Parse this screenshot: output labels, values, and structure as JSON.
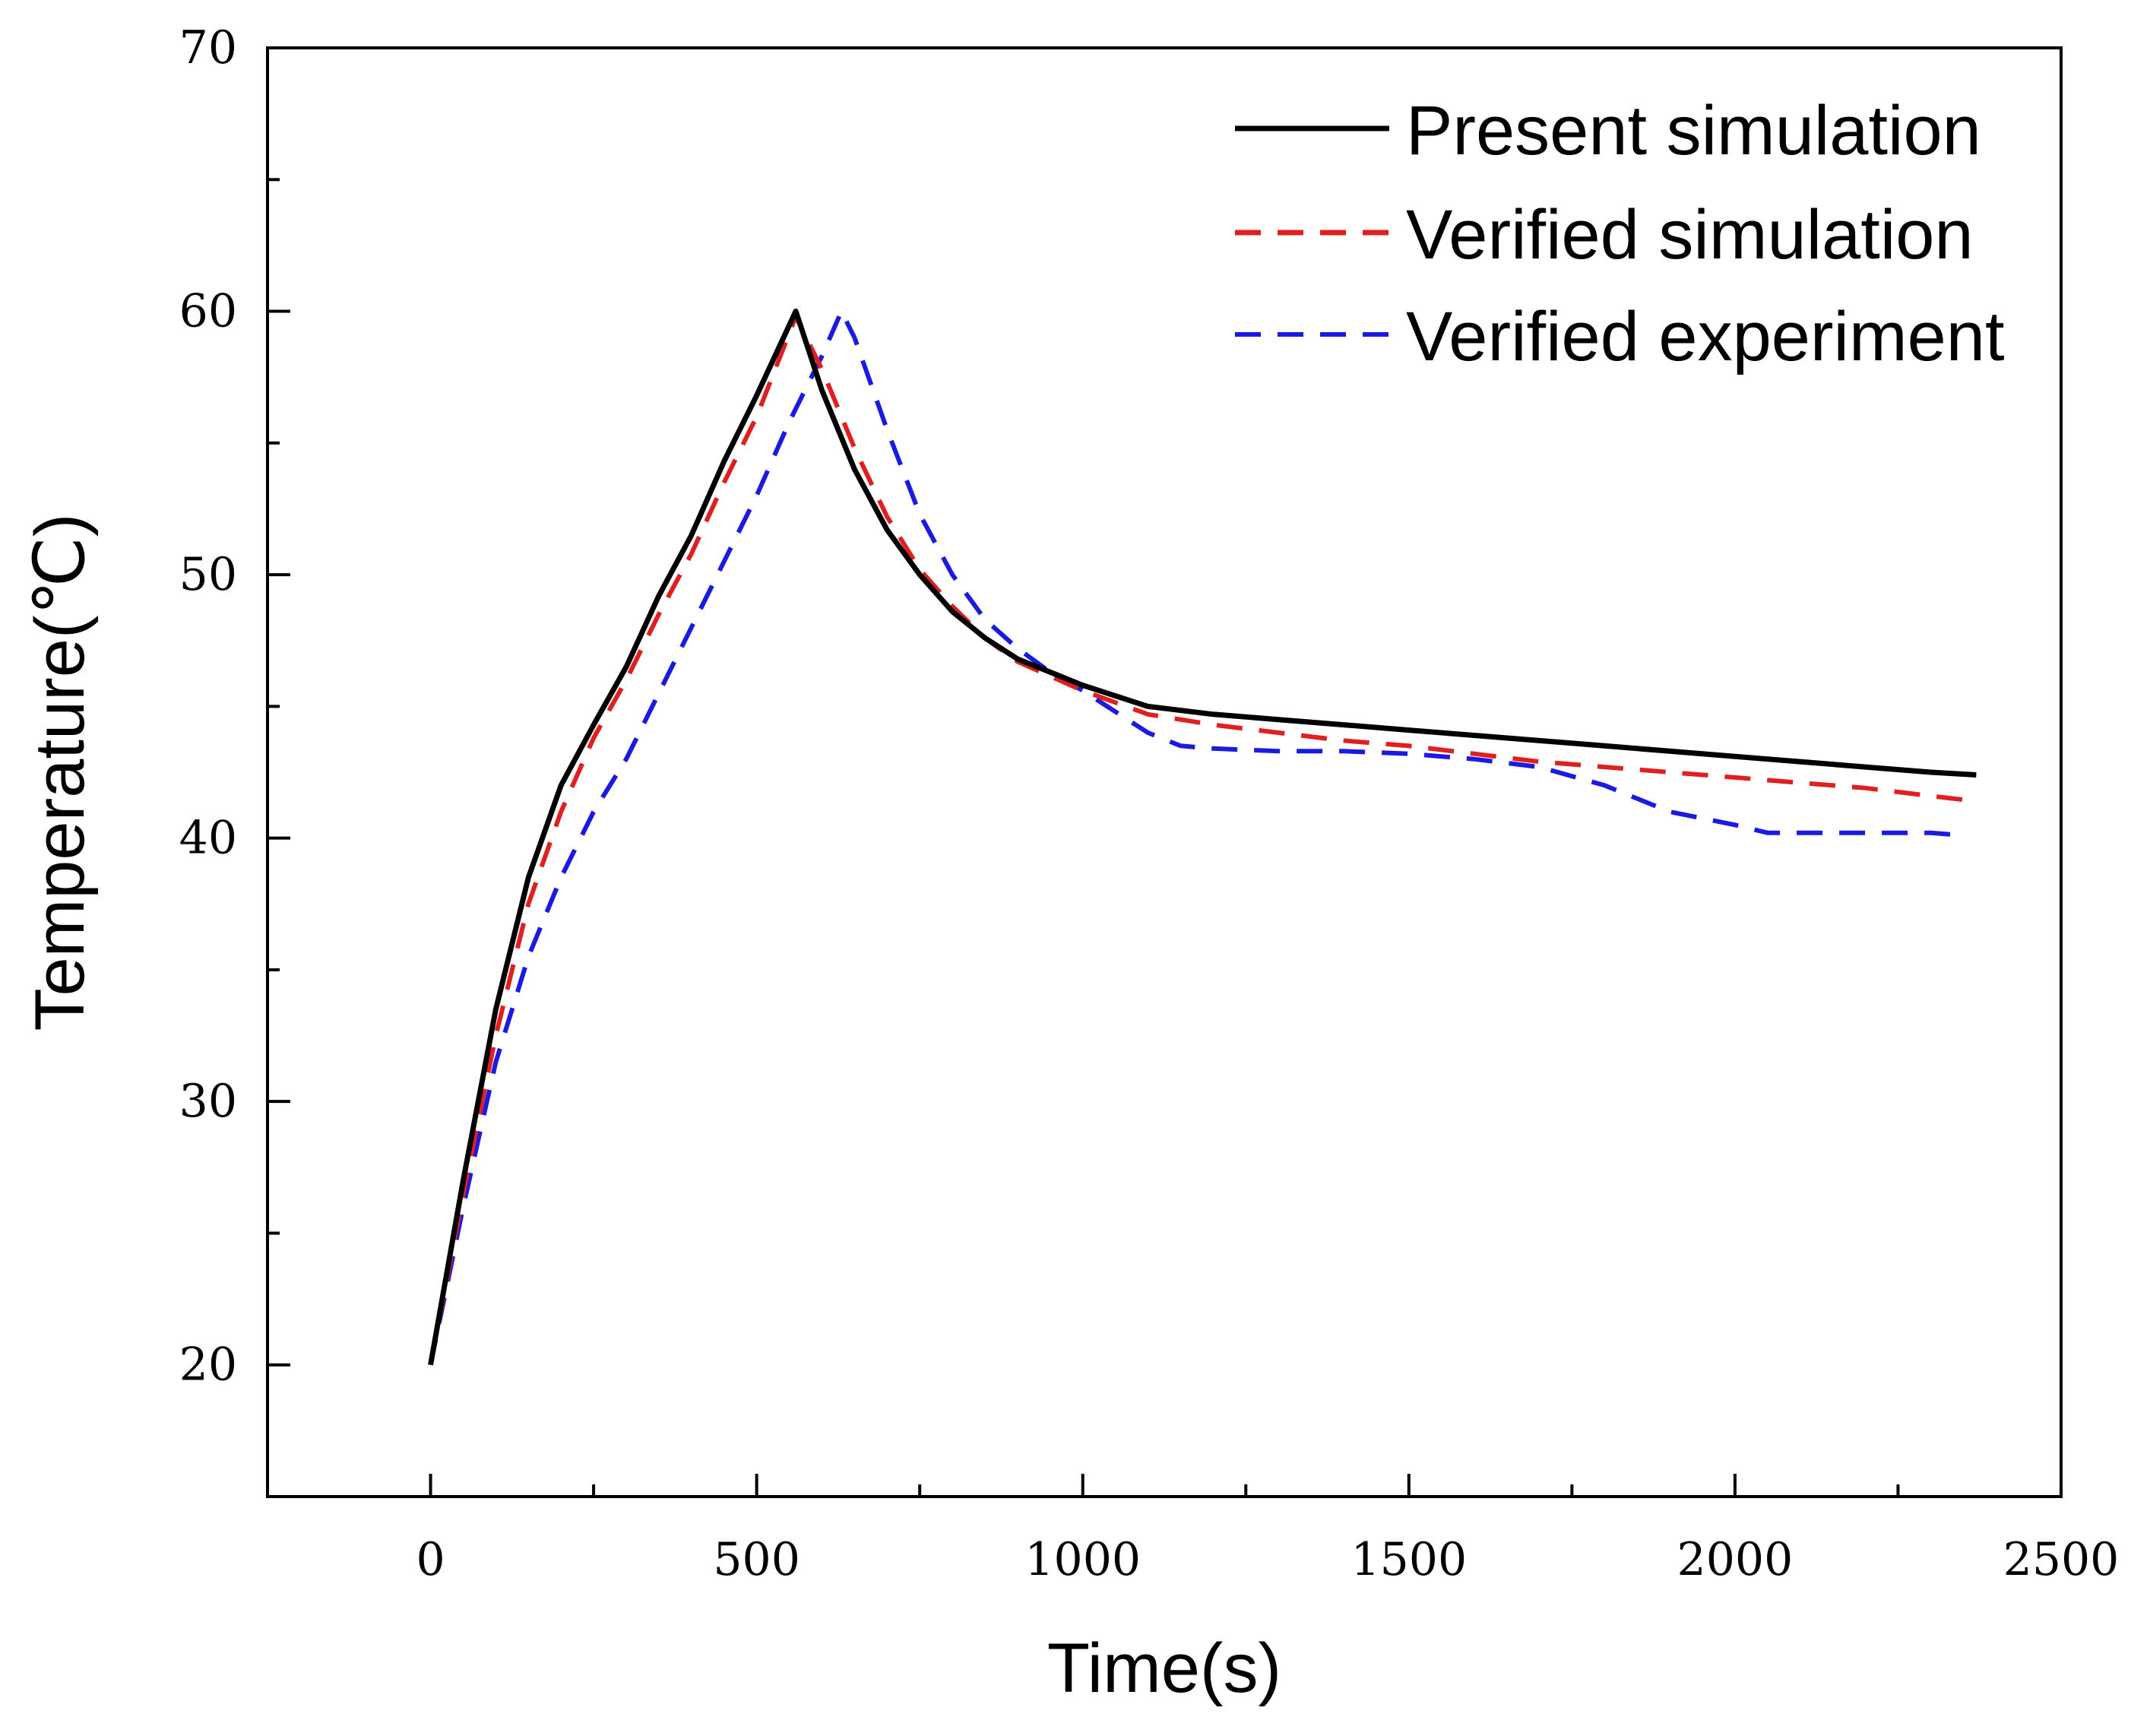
{
  "chart_data": {
    "type": "line",
    "title": "",
    "xlabel": "Time(s)",
    "ylabel": "Temperature(℃)",
    "xlim": [
      -250,
      2500
    ],
    "ylim": [
      15,
      70
    ],
    "x_ticks": [
      0,
      500,
      1000,
      1500,
      2000,
      2500
    ],
    "y_ticks": [
      20,
      30,
      40,
      50,
      60,
      70
    ],
    "x_minor_step": 250,
    "y_minor_step": 5,
    "grid": false,
    "legend_position": "top-right",
    "series": [
      {
        "name": "Present simulation",
        "color": "#000000",
        "style": "solid",
        "points": [
          [
            0,
            20
          ],
          [
            50,
            27
          ],
          [
            100,
            33.5
          ],
          [
            150,
            38.5
          ],
          [
            200,
            42
          ],
          [
            250,
            44.3
          ],
          [
            300,
            46.5
          ],
          [
            350,
            49.2
          ],
          [
            400,
            51.5
          ],
          [
            450,
            54.3
          ],
          [
            500,
            56.8
          ],
          [
            560,
            60
          ],
          [
            600,
            57
          ],
          [
            650,
            54
          ],
          [
            700,
            51.7
          ],
          [
            750,
            50
          ],
          [
            800,
            48.6
          ],
          [
            850,
            47.6
          ],
          [
            900,
            46.8
          ],
          [
            1000,
            45.8
          ],
          [
            1100,
            45
          ],
          [
            1200,
            44.7
          ],
          [
            1300,
            44.5
          ],
          [
            1400,
            44.3
          ],
          [
            1500,
            44.1
          ],
          [
            1600,
            43.9
          ],
          [
            1700,
            43.7
          ],
          [
            1800,
            43.5
          ],
          [
            1900,
            43.3
          ],
          [
            2000,
            43.1
          ],
          [
            2100,
            42.9
          ],
          [
            2200,
            42.7
          ],
          [
            2300,
            42.5
          ],
          [
            2370,
            42.4
          ]
        ]
      },
      {
        "name": "Verified simulation",
        "color": "#e02020",
        "style": "dashed",
        "points": [
          [
            0,
            20
          ],
          [
            50,
            26.5
          ],
          [
            100,
            32.5
          ],
          [
            150,
            37.5
          ],
          [
            200,
            41
          ],
          [
            250,
            43.8
          ],
          [
            300,
            46
          ],
          [
            350,
            48.5
          ],
          [
            400,
            50.8
          ],
          [
            450,
            53.5
          ],
          [
            500,
            56
          ],
          [
            560,
            59.8
          ],
          [
            600,
            57.8
          ],
          [
            650,
            54.8
          ],
          [
            700,
            52.2
          ],
          [
            750,
            50.2
          ],
          [
            800,
            48.8
          ],
          [
            850,
            47.6
          ],
          [
            900,
            46.7
          ],
          [
            1000,
            45.6
          ],
          [
            1100,
            44.7
          ],
          [
            1200,
            44.3
          ],
          [
            1300,
            44
          ],
          [
            1400,
            43.7
          ],
          [
            1500,
            43.5
          ],
          [
            1600,
            43.2
          ],
          [
            1700,
            42.9
          ],
          [
            1800,
            42.7
          ],
          [
            1900,
            42.5
          ],
          [
            2000,
            42.3
          ],
          [
            2100,
            42.1
          ],
          [
            2200,
            41.9
          ],
          [
            2300,
            41.6
          ],
          [
            2370,
            41.4
          ]
        ]
      },
      {
        "name": "Verified experiment",
        "color": "#1a1ae0",
        "style": "dashed",
        "points": [
          [
            0,
            20
          ],
          [
            50,
            26
          ],
          [
            100,
            31.5
          ],
          [
            150,
            35.5
          ],
          [
            200,
            38.5
          ],
          [
            250,
            41
          ],
          [
            300,
            43
          ],
          [
            350,
            45.5
          ],
          [
            400,
            48
          ],
          [
            450,
            50.5
          ],
          [
            500,
            53
          ],
          [
            550,
            55.8
          ],
          [
            600,
            58.3
          ],
          [
            630,
            60
          ],
          [
            650,
            59
          ],
          [
            700,
            55.5
          ],
          [
            750,
            52.3
          ],
          [
            800,
            50
          ],
          [
            850,
            48.3
          ],
          [
            900,
            47.2
          ],
          [
            950,
            46.3
          ],
          [
            1000,
            45.6
          ],
          [
            1050,
            44.8
          ],
          [
            1100,
            44
          ],
          [
            1150,
            43.5
          ],
          [
            1200,
            43.4
          ],
          [
            1300,
            43.3
          ],
          [
            1400,
            43.3
          ],
          [
            1500,
            43.2
          ],
          [
            1600,
            43
          ],
          [
            1700,
            42.7
          ],
          [
            1800,
            42
          ],
          [
            1900,
            41
          ],
          [
            2000,
            40.5
          ],
          [
            2050,
            40.2
          ],
          [
            2100,
            40.2
          ],
          [
            2200,
            40.2
          ],
          [
            2300,
            40.2
          ],
          [
            2350,
            40.1
          ]
        ]
      }
    ]
  }
}
